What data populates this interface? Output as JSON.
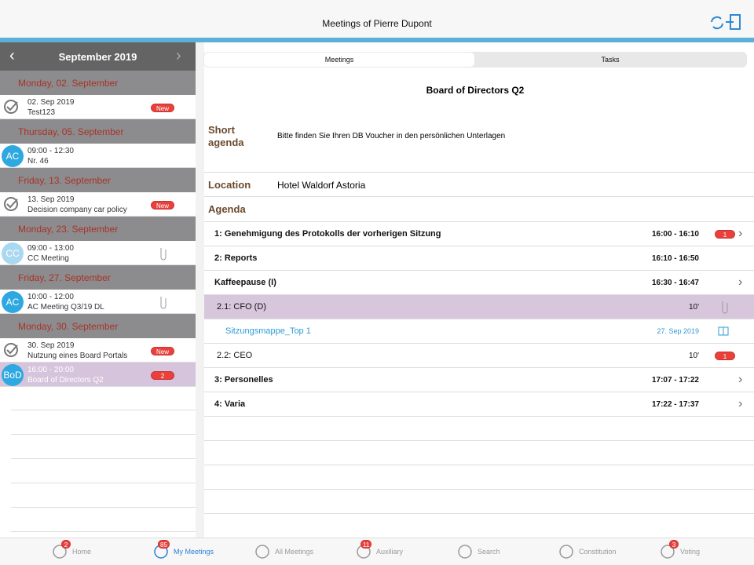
{
  "header": {
    "title": "Meetings of  Pierre Dupont"
  },
  "sidebar": {
    "month": "September 2019",
    "days": [
      {
        "label": "Monday, 02. September",
        "items": [
          {
            "icon": "check",
            "line1": "02. Sep 2019",
            "line2": "Test123",
            "badge": "New"
          }
        ]
      },
      {
        "label": "Thursday, 05. September",
        "items": [
          {
            "avatar": "AC",
            "avatar_color": "#2ea8e0",
            "line1": "09:00 - 12:30",
            "line2": "Nr. 46"
          }
        ]
      },
      {
        "label": "Friday, 13. September",
        "items": [
          {
            "icon": "check",
            "line1": "13. Sep 2019",
            "line2": "Decision company car policy",
            "badge": "New"
          }
        ]
      },
      {
        "label": "Monday, 23. September",
        "items": [
          {
            "avatar": "CC",
            "avatar_color": "#a9d8f0",
            "line1": "09:00 - 13:00",
            "line2": "CC Meeting",
            "clip": true
          }
        ]
      },
      {
        "label": "Friday, 27. September",
        "items": [
          {
            "avatar": "AC",
            "avatar_color": "#2ea8e0",
            "line1": "10:00 - 12:00",
            "line2": "AC Meeting Q3/19 DL",
            "clip": true
          }
        ]
      },
      {
        "label": "Monday, 30. September",
        "items": [
          {
            "icon": "check",
            "line1": "30. Sep 2019",
            "line2": "Nutzung eines Board Portals",
            "badge": "New"
          },
          {
            "avatar": "BoD",
            "avatar_color": "#2ea8e0",
            "line1": "16:00 - 20:00",
            "line2": "Board of Directors Q2",
            "badge": 2,
            "selected": true
          }
        ]
      }
    ]
  },
  "tabs": {
    "items": [
      "Meetings",
      "Tasks"
    ],
    "active": 0
  },
  "detail": {
    "title": "Board of Directors Q2",
    "short_agenda_label": "Short agenda",
    "short_agenda_text": "Bitte finden Sie Ihren DB Voucher in den persönlichen Unterlagen",
    "location_label": "Location",
    "location": "Hotel Waldorf Astoria",
    "agenda_label": "Agenda",
    "rows": [
      {
        "title": "1: Genehmigung des Protokolls der vorherigen Sitzung",
        "time": "16:00 - 16:10",
        "badge": 1,
        "chevron": true,
        "bold": true
      },
      {
        "title": "2: Reports",
        "time": "16:10 - 16:50",
        "bold": true
      },
      {
        "title": "Kaffeepause (I)",
        "time": "16:30 - 16:47",
        "chevron": true,
        "bold": true
      },
      {
        "title": "2.1: CFO (D)",
        "time": "10'",
        "icon": "clip",
        "highlight": true,
        "indent": 1
      },
      {
        "title": "Sitzungsmappe_Top 1",
        "time": "27. Sep 2019",
        "icon": "book",
        "link": true,
        "indent": 2
      },
      {
        "title": "2.2: CEO",
        "time": "10'",
        "badge": 1,
        "indent": 1
      },
      {
        "title": "3: Personelles",
        "time": "17:07 - 17:22",
        "chevron": true,
        "bold": true
      },
      {
        "title": "4: Varia",
        "time": "17:22 - 17:37",
        "chevron": true,
        "bold": true
      }
    ]
  },
  "tabbar": [
    {
      "label": "Home",
      "badge": 2
    },
    {
      "label": "My Meetings",
      "badge": 85,
      "active": true
    },
    {
      "label": "All Meetings"
    },
    {
      "label": "Auxiliary",
      "badge": 11
    },
    {
      "label": "Search"
    },
    {
      "label": "Constitution"
    },
    {
      "label": "Voting",
      "badge": 3
    }
  ]
}
